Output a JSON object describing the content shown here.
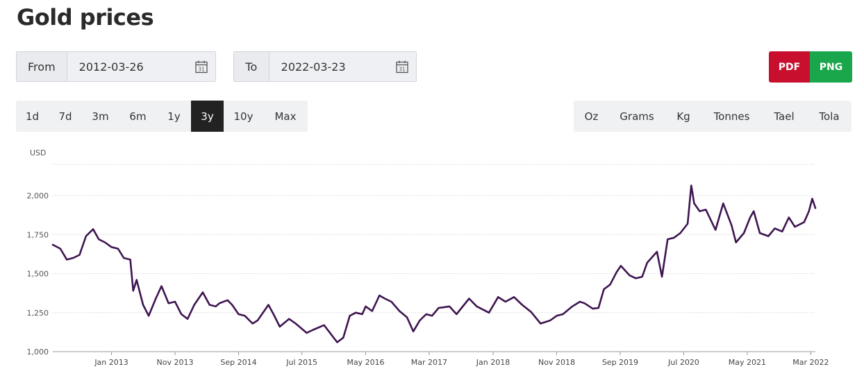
{
  "page": {
    "title": "Gold prices"
  },
  "from": {
    "label": "From",
    "value": "2012-03-26"
  },
  "to": {
    "label": "To",
    "value": "2022-03-23"
  },
  "export": {
    "pdf": "PDF",
    "png": "PNG"
  },
  "ranges": [
    {
      "label": "1d",
      "active": false
    },
    {
      "label": "7d",
      "active": false
    },
    {
      "label": "3m",
      "active": false
    },
    {
      "label": "6m",
      "active": false
    },
    {
      "label": "1y",
      "active": false
    },
    {
      "label": "3y",
      "active": false
    },
    {
      "label": "10y",
      "active": true
    },
    {
      "label": "Max",
      "active": false
    }
  ],
  "units": [
    {
      "label": "Oz",
      "active": true
    },
    {
      "label": "Grams",
      "active": false
    },
    {
      "label": "Kg",
      "active": false
    },
    {
      "label": "Tonnes",
      "active": false
    },
    {
      "label": "Tael",
      "active": false
    },
    {
      "label": "Tola",
      "active": false
    }
  ],
  "colors": {
    "line": "#3d1450",
    "grid": "#c9c9c9",
    "active_bg": "#222222",
    "pdf": "#c8102e",
    "png": "#1aa64a"
  },
  "chart_data": {
    "type": "line",
    "ylabel": "USD",
    "ylim": [
      1000,
      2200
    ],
    "yticks": [
      1000,
      1250,
      1500,
      1750,
      2000
    ],
    "ytick_labels": [
      "1,000",
      "1,250",
      "1,500",
      "1,750",
      "2,000"
    ],
    "grid": true,
    "xticks": [
      {
        "label": "Jan 2013",
        "x": "2013-01-01"
      },
      {
        "label": "Nov 2013",
        "x": "2013-11-01"
      },
      {
        "label": "Sep 2014",
        "x": "2014-09-01"
      },
      {
        "label": "Jul 2015",
        "x": "2015-07-01"
      },
      {
        "label": "May 2016",
        "x": "2016-05-01"
      },
      {
        "label": "Mar 2017",
        "x": "2017-03-01"
      },
      {
        "label": "Jan 2018",
        "x": "2018-01-01"
      },
      {
        "label": "Nov 2018",
        "x": "2018-11-01"
      },
      {
        "label": "Sep 2019",
        "x": "2019-09-01"
      },
      {
        "label": "Jul 2020",
        "x": "2020-07-01"
      },
      {
        "label": "May 2021",
        "x": "2021-05-01"
      },
      {
        "label": "Mar 2022",
        "x": "2022-03-01"
      }
    ],
    "x": [
      "2012-03-26",
      "2012-05-01",
      "2012-06-01",
      "2012-07-01",
      "2012-08-01",
      "2012-09-01",
      "2012-10-05",
      "2012-11-01",
      "2012-12-01",
      "2013-01-01",
      "2013-02-01",
      "2013-03-01",
      "2013-04-01",
      "2013-04-15",
      "2013-05-01",
      "2013-06-01",
      "2013-06-28",
      "2013-08-01",
      "2013-08-28",
      "2013-10-01",
      "2013-11-01",
      "2013-12-01",
      "2013-12-31",
      "2014-02-01",
      "2014-03-14",
      "2014-04-15",
      "2014-05-15",
      "2014-06-01",
      "2014-07-10",
      "2014-08-01",
      "2014-09-01",
      "2014-10-01",
      "2014-11-07",
      "2014-12-01",
      "2015-01-22",
      "2015-02-15",
      "2015-03-17",
      "2015-05-01",
      "2015-06-01",
      "2015-07-24",
      "2015-08-24",
      "2015-10-15",
      "2015-12-17",
      "2016-01-15",
      "2016-02-15",
      "2016-03-15",
      "2016-04-15",
      "2016-05-01",
      "2016-06-01",
      "2016-07-06",
      "2016-08-01",
      "2016-09-01",
      "2016-10-10",
      "2016-11-15",
      "2016-12-15",
      "2017-01-15",
      "2017-02-15",
      "2017-03-15",
      "2017-04-15",
      "2017-06-06",
      "2017-07-10",
      "2017-09-08",
      "2017-10-15",
      "2017-12-12",
      "2018-01-25",
      "2018-03-01",
      "2018-04-11",
      "2018-05-20",
      "2018-07-01",
      "2018-08-16",
      "2018-10-01",
      "2018-11-01",
      "2018-12-01",
      "2019-01-15",
      "2019-02-20",
      "2019-03-15",
      "2019-04-23",
      "2019-05-20",
      "2019-06-15",
      "2019-07-15",
      "2019-08-15",
      "2019-09-04",
      "2019-10-15",
      "2019-11-15",
      "2019-12-15",
      "2020-01-08",
      "2020-02-24",
      "2020-03-19",
      "2020-04-15",
      "2020-05-15",
      "2020-06-15",
      "2020-07-20",
      "2020-08-06",
      "2020-08-20",
      "2020-09-15",
      "2020-10-15",
      "2020-11-30",
      "2021-01-06",
      "2021-02-15",
      "2021-03-08",
      "2021-04-15",
      "2021-05-15",
      "2021-06-01",
      "2021-06-30",
      "2021-08-10",
      "2021-09-10",
      "2021-10-15",
      "2021-11-16",
      "2021-12-15",
      "2022-01-28",
      "2022-02-20",
      "2022-03-08",
      "2022-03-23"
    ],
    "y": [
      1685,
      1660,
      1590,
      1600,
      1620,
      1740,
      1785,
      1720,
      1700,
      1670,
      1660,
      1600,
      1590,
      1390,
      1460,
      1300,
      1230,
      1340,
      1420,
      1310,
      1320,
      1240,
      1210,
      1300,
      1380,
      1300,
      1290,
      1310,
      1330,
      1300,
      1240,
      1230,
      1180,
      1200,
      1300,
      1240,
      1160,
      1210,
      1180,
      1120,
      1140,
      1170,
      1060,
      1090,
      1230,
      1250,
      1240,
      1290,
      1260,
      1360,
      1340,
      1320,
      1260,
      1220,
      1130,
      1200,
      1240,
      1230,
      1280,
      1290,
      1240,
      1340,
      1290,
      1250,
      1350,
      1320,
      1350,
      1300,
      1255,
      1180,
      1200,
      1230,
      1240,
      1290,
      1320,
      1310,
      1275,
      1280,
      1400,
      1430,
      1510,
      1550,
      1490,
      1470,
      1480,
      1570,
      1640,
      1480,
      1720,
      1730,
      1760,
      1820,
      2065,
      1950,
      1900,
      1910,
      1780,
      1950,
      1810,
      1700,
      1760,
      1860,
      1900,
      1760,
      1740,
      1790,
      1770,
      1860,
      1800,
      1830,
      1900,
      1980,
      1920
    ]
  }
}
